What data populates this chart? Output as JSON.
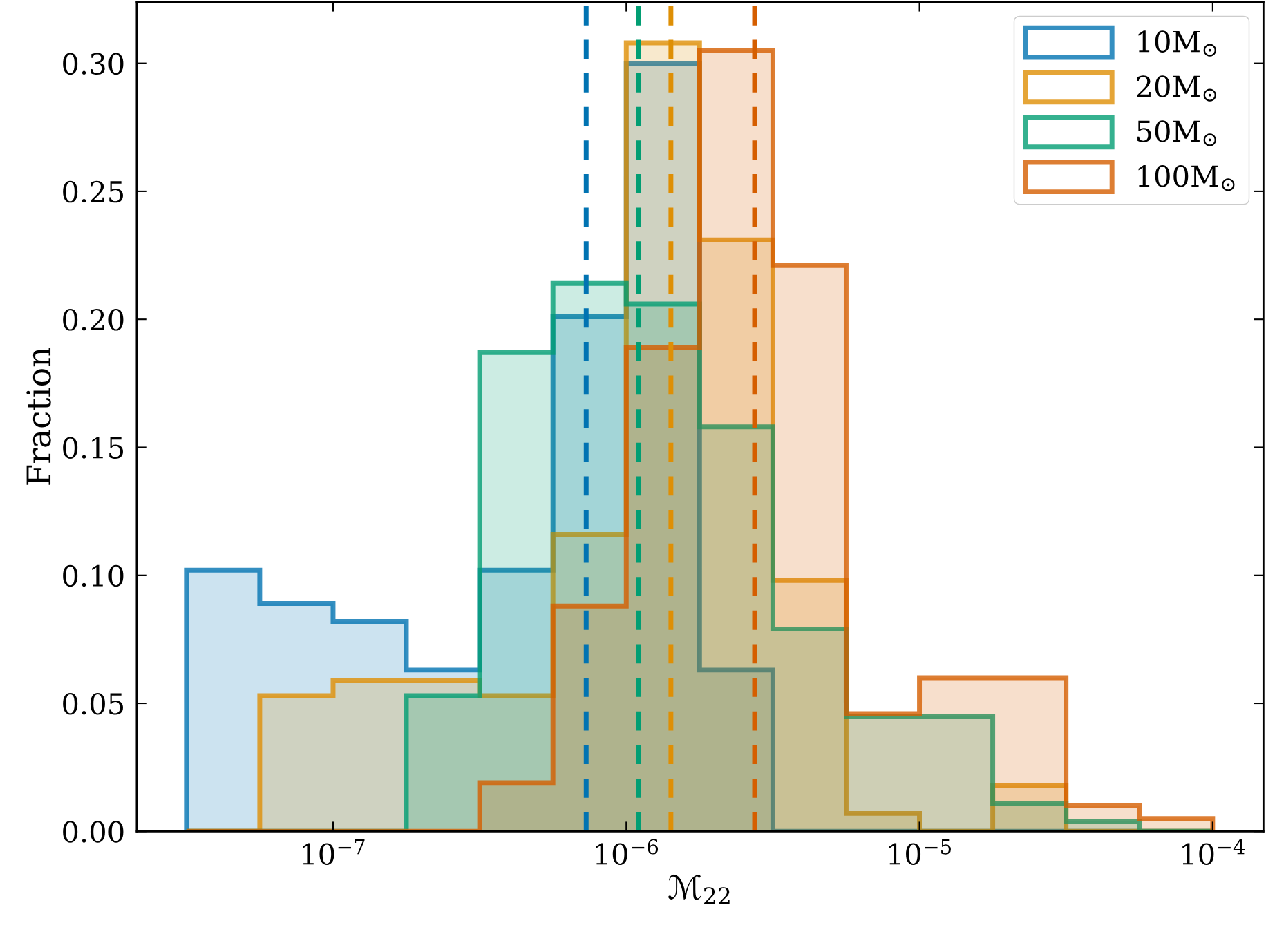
{
  "chart_data": {
    "type": "histogram",
    "xlabel": "ℳ$_{22}$",
    "ylabel": "Fraction",
    "log": "x",
    "bins": [
      3.162e-08,
      5.623e-08,
      1e-07,
      1.778e-07,
      3.162e-07,
      5.623e-07,
      1e-06,
      1.778e-06,
      3.162e-06,
      5.623e-06,
      1e-05,
      1.778e-05,
      3.162e-05,
      5.623e-05,
      0.0001
    ],
    "series": [
      {
        "name": "10M$_{⊙}$",
        "color": "#0173b2",
        "values": [
          0.102,
          0.089,
          0.082,
          0.063,
          0.102,
          0.201,
          0.3,
          0.063,
          0,
          0,
          0,
          0,
          0,
          0
        ]
      },
      {
        "name": "20M$_{⊙}$",
        "color": "#de8f05",
        "values": [
          0,
          0.053,
          0.059,
          0.059,
          0.053,
          0.116,
          0.308,
          0.231,
          0.098,
          0.007,
          0,
          0.018,
          0,
          0
        ]
      },
      {
        "name": "50M$_{⊙}$",
        "color": "#029e73",
        "values": [
          0,
          0,
          0,
          0.053,
          0.187,
          0.214,
          0.206,
          0.158,
          0.079,
          0.045,
          0.045,
          0.011,
          0.004,
          0
        ]
      },
      {
        "name": "100M$_{⊙}$",
        "color": "#d55e00",
        "values": [
          0,
          0,
          0,
          0,
          0.019,
          0.088,
          0.189,
          0.305,
          0.221,
          0.046,
          0.06,
          0.06,
          0.01,
          0.005
        ]
      }
    ],
    "ref_lines": [
      {
        "axis": "x",
        "value": 7.3e-07,
        "color": "#0173b2",
        "line_style": "dashed"
      },
      {
        "axis": "x",
        "value": 1.1e-06,
        "color": "#029e73",
        "line_style": "dashed"
      },
      {
        "axis": "x",
        "value": 1.42e-06,
        "color": "#de8f05",
        "line_style": "dashed"
      },
      {
        "axis": "x",
        "value": 2.74e-06,
        "color": "#d55e00",
        "line_style": "dashed"
      }
    ],
    "xlim": [
      2.14e-08,
      0.000149
    ],
    "xticks": [
      {
        "value": 1e-07,
        "label": "10$^{−7}$"
      },
      {
        "value": 1e-06,
        "label": "10$^{−6}$"
      },
      {
        "value": 1e-05,
        "label": "10$^{−5}$"
      },
      {
        "value": 0.0001,
        "label": "10$^{−4}$"
      }
    ],
    "ylim": [
      0,
      0.324
    ],
    "yticks": [
      {
        "value": 0,
        "label": "0.00"
      },
      {
        "value": 0.05,
        "label": "0.05"
      },
      {
        "value": 0.1,
        "label": "0.10"
      },
      {
        "value": 0.15,
        "label": "0.15"
      },
      {
        "value": 0.2,
        "label": "0.20"
      },
      {
        "value": 0.25,
        "label": "0.25"
      },
      {
        "value": 0.3,
        "label": "0.30"
      }
    ],
    "grid": false,
    "legend": "top right"
  }
}
